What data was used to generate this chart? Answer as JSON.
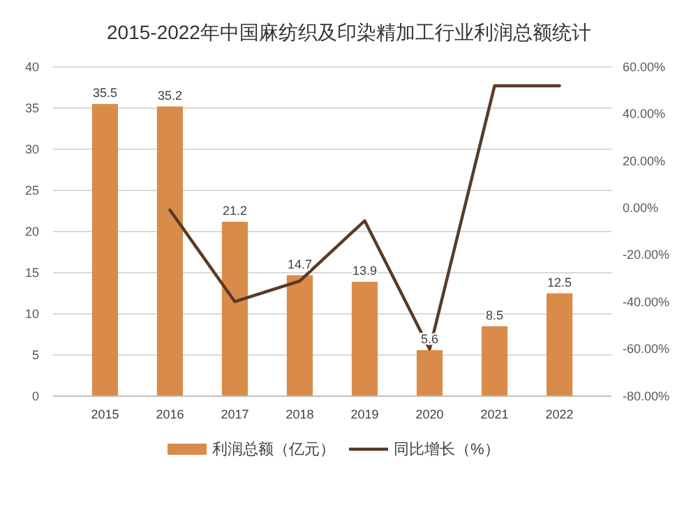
{
  "chart_data": {
    "type": "bar",
    "title": "2015-2022年中国麻纺织及印染精加工行业利润总额统计",
    "categories": [
      "2015",
      "2016",
      "2017",
      "2018",
      "2019",
      "2020",
      "2021",
      "2022"
    ],
    "series": [
      {
        "name": "利润总额（亿元）",
        "color": "#d98c4a",
        "values": [
          35.5,
          35.2,
          21.2,
          14.7,
          13.9,
          5.6,
          8.5,
          12.5
        ],
        "value_labels": [
          "35.5",
          "35.2",
          "21.2",
          "14.7",
          "13.9",
          "5.6",
          "8.5",
          "12.5"
        ]
      },
      {
        "name": "同比增长（%）",
        "type": "line",
        "axis": "y2",
        "color": "#5a3a26",
        "values": [
          null,
          -0.8,
          -39.8,
          -31,
          -5.4,
          -60,
          52,
          52
        ]
      }
    ],
    "ylim": [
      0,
      40
    ],
    "yticks": [
      0,
      5,
      10,
      15,
      20,
      25,
      30,
      35,
      40
    ],
    "y2lim": [
      -80,
      60
    ],
    "y2ticks": [
      {
        "value": -80,
        "label": "-80.00%"
      },
      {
        "value": -60,
        "label": "-60.00%"
      },
      {
        "value": -40,
        "label": "-40.00%"
      },
      {
        "value": -20,
        "label": "-20.00%"
      },
      {
        "value": 0,
        "label": "0.00%"
      },
      {
        "value": 20,
        "label": "20.00%"
      },
      {
        "value": 40,
        "label": "40.00%"
      },
      {
        "value": 60,
        "label": "60.00%"
      }
    ],
    "grid": "y",
    "legend": "bottom",
    "marker": "none"
  }
}
